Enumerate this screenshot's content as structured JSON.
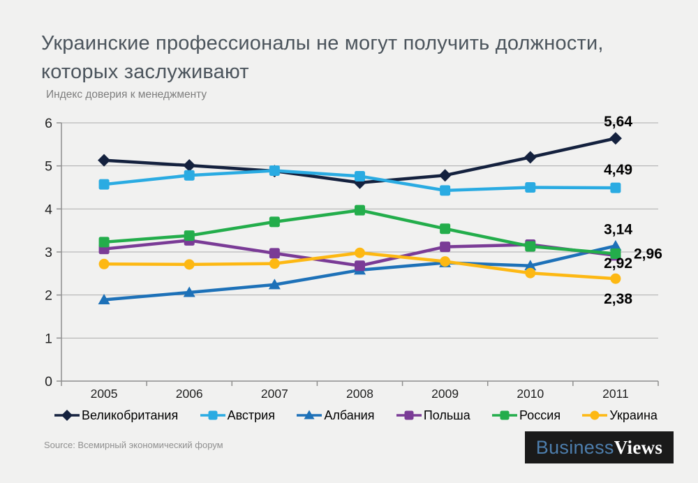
{
  "header": {
    "title_line1": "Украинские профессионалы не могут получить должности,",
    "title_line2": "которых заслуживают",
    "subtitle": "Индекс доверия к менеджменту"
  },
  "footer": {
    "source": "Source: Всемирный экономический форум",
    "logo": {
      "part1": "Business",
      "part2": "Views"
    }
  },
  "palette": {
    "page_background": "#f1f1f0",
    "gridline": "#ababab",
    "axis": "#8e8e8e",
    "title_text": "#4b545c",
    "subtitle_text": "#7d7d7d",
    "tick_text": "#1f1f1f",
    "data_label_text": "#000000",
    "source_text": "#8f8f8f",
    "logo_background": "#1a1a1a",
    "logo_blue": "#4d7ead",
    "logo_white": "#ffffff"
  },
  "chart_data": {
    "type": "line",
    "title": "Украинские профессионалы не могут получить должности, которых заслуживают",
    "subtitle": "Индекс доверия к менеджменту",
    "categories": [
      "2005",
      "2006",
      "2007",
      "2008",
      "2009",
      "2010",
      "2011"
    ],
    "y_ticks": [
      0,
      1,
      2,
      3,
      4,
      5,
      6
    ],
    "ylim": [
      0,
      6
    ],
    "grid": true,
    "legend_position": "bottom",
    "decimal_separator": ",",
    "series": [
      {
        "name": "Великобритания",
        "marker": "diamond",
        "color": "#14213e",
        "values": [
          5.13,
          5.01,
          4.88,
          4.61,
          4.78,
          5.2,
          5.64
        ],
        "end_label": "5,64"
      },
      {
        "name": "Австрия",
        "marker": "square",
        "color": "#2aabe2",
        "values": [
          4.57,
          4.78,
          4.89,
          4.76,
          4.43,
          4.5,
          4.49
        ],
        "end_label": "4,49"
      },
      {
        "name": "Албания",
        "marker": "triangle",
        "color": "#1d71b8",
        "values": [
          1.89,
          2.06,
          2.24,
          2.58,
          2.75,
          2.68,
          3.14
        ],
        "end_label": "3,14"
      },
      {
        "name": "Польша",
        "marker": "square",
        "color": "#7a3b96",
        "values": [
          3.07,
          3.27,
          2.97,
          2.68,
          3.12,
          3.17,
          2.92
        ],
        "end_label": "2,92"
      },
      {
        "name": "Россия",
        "marker": "square",
        "color": "#23ad4b",
        "values": [
          3.23,
          3.38,
          3.7,
          3.97,
          3.54,
          3.13,
          2.96
        ],
        "end_label": "2,96"
      },
      {
        "name": "Украина",
        "marker": "circle",
        "color": "#fdb813",
        "values": [
          2.72,
          2.71,
          2.73,
          2.98,
          2.78,
          2.51,
          2.38
        ],
        "end_label": "2,38"
      }
    ]
  }
}
